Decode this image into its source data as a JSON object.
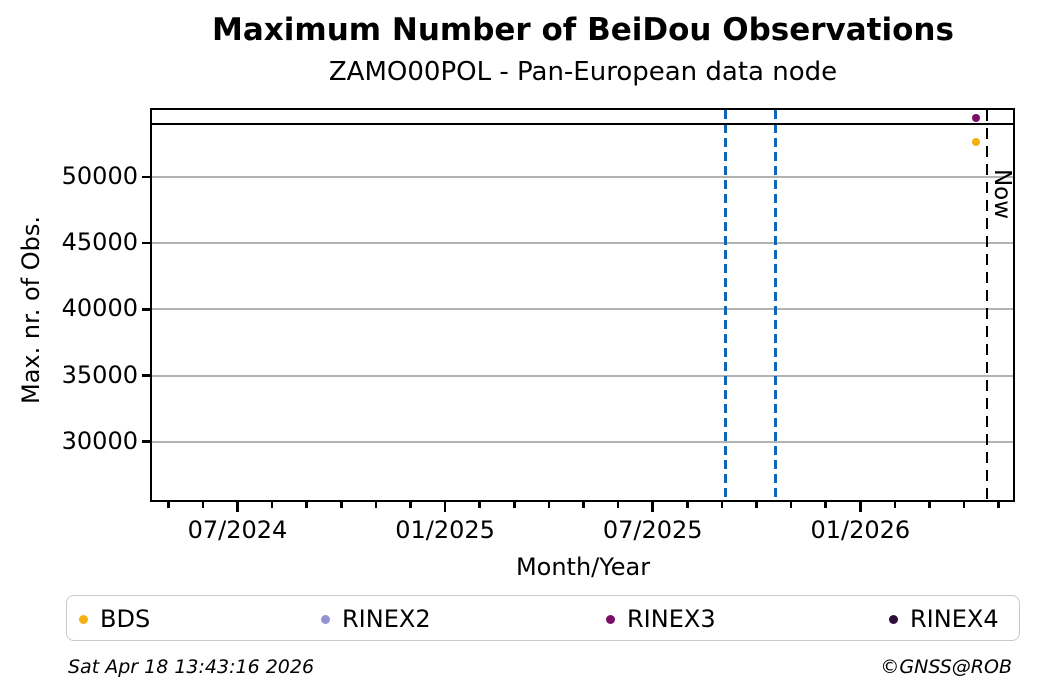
{
  "chart_data": {
    "type": "scatter",
    "title": "Maximum Number of BeiDou Observations",
    "subtitle": "ZAMO00POL - Pan-European data node",
    "xlabel": "Month/Year",
    "ylabel": "Max. nr. of Obs.",
    "x_axis": {
      "xlim_months": [
        -2.47,
        22.47
      ],
      "major_ticks": [
        {
          "label": "07/2024",
          "month_index": 0
        },
        {
          "label": "01/2025",
          "month_index": 6
        },
        {
          "label": "07/2025",
          "month_index": 12
        },
        {
          "label": "01/2026",
          "month_index": 18
        }
      ],
      "minor_tick_every_months": 1
    },
    "y_axis": {
      "ylim": [
        25450,
        55050
      ],
      "ticks": [
        30000,
        35000,
        40000,
        45000,
        50000
      ],
      "grid": true,
      "grid_color": "#b3b3b3"
    },
    "series": [
      {
        "name": "BDS",
        "color": "#f3b010",
        "points": [
          {
            "date": "2026-04-10",
            "month_index": 21.34,
            "value": 52600
          }
        ]
      },
      {
        "name": "RINEX2",
        "color": "#9593d2",
        "points": []
      },
      {
        "name": "RINEX3",
        "color": "#7b0d66",
        "points": [
          {
            "date": "2026-04-10",
            "month_index": 21.34,
            "value": 54450
          }
        ]
      },
      {
        "name": "RINEX4",
        "color": "#2d0b3a",
        "points": []
      }
    ],
    "reference_lines": {
      "horizontal": [
        {
          "value": 54000,
          "color": "#000000",
          "style": "solid"
        }
      ],
      "vertical_events": [
        {
          "date": "2025-09-04",
          "month_index": 14.11,
          "color": "#0e66b8",
          "style": "dashed"
        },
        {
          "date": "2025-10-17",
          "month_index": 15.56,
          "color": "#0e66b8",
          "style": "dashed"
        }
      ],
      "now": {
        "label": "Now",
        "date": "2026-04-18",
        "month_index": 21.66,
        "color": "#000000",
        "style": "dashed"
      }
    },
    "legend_position": "bottom"
  },
  "footer": {
    "timestamp": "Sat Apr 18 13:43:16 2026",
    "copyright": "©GNSS@ROB"
  }
}
